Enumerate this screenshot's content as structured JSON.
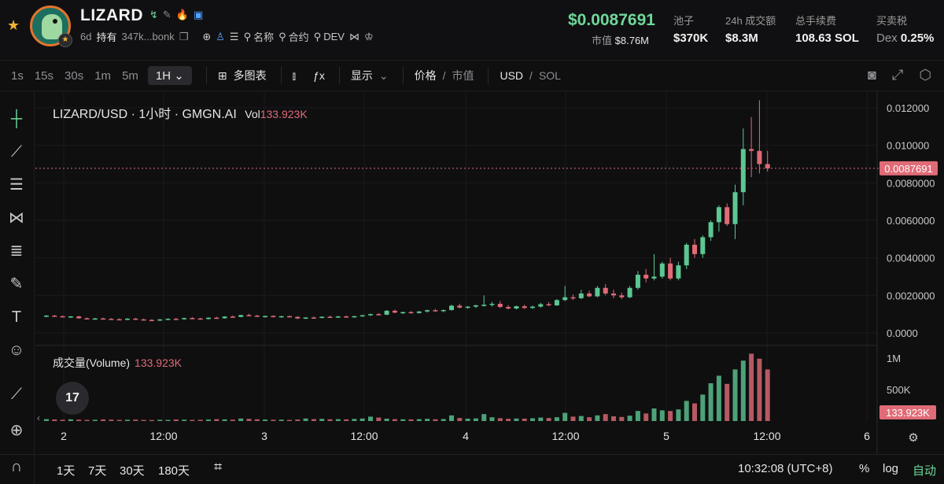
{
  "header": {
    "token_name": "LIZARD",
    "age": "6d",
    "holders_label": "持有",
    "address": "347k...bonk",
    "links": [
      {
        "icon": "globe-icon"
      },
      {
        "icon": "user-icon"
      },
      {
        "icon": "list-icon"
      }
    ],
    "search_name_label": "名称",
    "search_contract_label": "合约",
    "search_dev_label": "DEV",
    "price": "$0.0087691",
    "mcap_label": "市值",
    "mcap_value": "$8.76M",
    "stats": [
      {
        "label": "池子",
        "value": "$370K"
      },
      {
        "label": "24h 成交额",
        "value": "$8.3M"
      },
      {
        "label": "总手续费",
        "value": "108.63 SOL"
      },
      {
        "label": "买卖税",
        "prefix": "Dex",
        "value": "0.25%"
      }
    ]
  },
  "toolbar": {
    "timeframes": [
      "1s",
      "15s",
      "30s",
      "1m",
      "5m"
    ],
    "selected_timeframe": "1H",
    "multi_chart_label": "多图表",
    "display_label": "显示",
    "price_label": "价格",
    "mcap_toggle_label": "市值",
    "usd_label": "USD",
    "sol_label": "SOL"
  },
  "chart": {
    "legend_title": "LIZARD/USD · 1小时 · GMGN.AI",
    "vol_prefix": "Vol",
    "vol_value": "133.923K",
    "volume_title": "成交量(Volume)",
    "volume_value": "133.923K",
    "tv_logo": "17",
    "last_price_label": "0.0087691",
    "volume_last_label": "133.923K",
    "price_ticks": [
      "0.0000",
      "0.0020000",
      "0.0040000",
      "0.0060000",
      "0.0080000",
      "0.010000",
      "0.012000"
    ],
    "volume_ticks": [
      "500K",
      "1M"
    ],
    "time_ticks": [
      "2",
      "12:00",
      "3",
      "12:00",
      "4",
      "12:00",
      "5",
      "12:00",
      "6"
    ],
    "up_color": "#5cc792",
    "down_color": "#e06b77"
  },
  "chart_data": {
    "type": "candlestick",
    "pair": "LIZARD/USD",
    "interval": "1小时",
    "ylim": [
      0,
      0.0125
    ],
    "candles": [
      [
        0.0009,
        0.00095,
        0.00085,
        0.00092
      ],
      [
        0.00092,
        0.00096,
        0.00088,
        0.00089
      ],
      [
        0.00089,
        0.00092,
        0.00083,
        0.00085
      ],
      [
        0.00085,
        0.0009,
        0.0008,
        0.00088
      ],
      [
        0.00088,
        0.00091,
        0.00075,
        0.00078
      ],
      [
        0.00078,
        0.00082,
        0.00072,
        0.00074
      ],
      [
        0.00074,
        0.0008,
        0.0007,
        0.00077
      ],
      [
        0.00077,
        0.00081,
        0.00072,
        0.00075
      ],
      [
        0.00075,
        0.00079,
        0.0007,
        0.00073
      ],
      [
        0.00073,
        0.00077,
        0.00068,
        0.00071
      ],
      [
        0.00071,
        0.00078,
        0.00067,
        0.00076
      ],
      [
        0.00076,
        0.0008,
        0.0007,
        0.00072
      ],
      [
        0.00072,
        0.00076,
        0.00066,
        0.00069
      ],
      [
        0.00069,
        0.00073,
        0.00064,
        0.00067
      ],
      [
        0.00067,
        0.00074,
        0.00063,
        0.00072
      ],
      [
        0.00072,
        0.00078,
        0.00069,
        0.00075
      ],
      [
        0.00075,
        0.0008,
        0.0007,
        0.00073
      ],
      [
        0.00073,
        0.00081,
        0.0007,
        0.00079
      ],
      [
        0.00079,
        0.00084,
        0.00075,
        0.00077
      ],
      [
        0.00077,
        0.0008,
        0.00071,
        0.00074
      ],
      [
        0.00074,
        0.00083,
        0.00072,
        0.00081
      ],
      [
        0.00081,
        0.00086,
        0.00076,
        0.00078
      ],
      [
        0.00078,
        0.00089,
        0.00076,
        0.00087
      ],
      [
        0.00087,
        0.00093,
        0.00082,
        0.00085
      ],
      [
        0.00085,
        0.00097,
        0.00083,
        0.00095
      ],
      [
        0.00095,
        0.00102,
        0.00089,
        0.00092
      ],
      [
        0.00092,
        0.00096,
        0.00085,
        0.00088
      ],
      [
        0.00088,
        0.00092,
        0.00082,
        0.0009
      ],
      [
        0.0009,
        0.00094,
        0.00084,
        0.00086
      ],
      [
        0.00086,
        0.00091,
        0.00081,
        0.00089
      ],
      [
        0.00089,
        0.00093,
        0.00083,
        0.00085
      ],
      [
        0.00085,
        0.00089,
        0.00074,
        0.00077
      ],
      [
        0.00077,
        0.00084,
        0.00074,
        0.00082
      ],
      [
        0.00082,
        0.00087,
        0.00078,
        0.0008
      ],
      [
        0.0008,
        0.00088,
        0.00077,
        0.00086
      ],
      [
        0.00086,
        0.00092,
        0.00082,
        0.00084
      ],
      [
        0.00084,
        0.0009,
        0.0008,
        0.00088
      ],
      [
        0.00088,
        0.00093,
        0.00081,
        0.00083
      ],
      [
        0.00083,
        0.00091,
        0.00081,
        0.00089
      ],
      [
        0.00089,
        0.00096,
        0.00086,
        0.00094
      ],
      [
        0.00094,
        0.00103,
        0.0009,
        0.001
      ],
      [
        0.001,
        0.00106,
        0.00094,
        0.00097
      ],
      [
        0.00097,
        0.00121,
        0.00095,
        0.00118
      ],
      [
        0.00118,
        0.00124,
        0.00105,
        0.00108
      ],
      [
        0.00108,
        0.00113,
        0.001,
        0.00111
      ],
      [
        0.00111,
        0.00116,
        0.00103,
        0.00106
      ],
      [
        0.00106,
        0.00117,
        0.00103,
        0.00114
      ],
      [
        0.00114,
        0.00124,
        0.00108,
        0.00121
      ],
      [
        0.00121,
        0.00128,
        0.00113,
        0.00117
      ],
      [
        0.00117,
        0.00124,
        0.0011,
        0.00122
      ],
      [
        0.00122,
        0.0015,
        0.00118,
        0.00145
      ],
      [
        0.00145,
        0.00155,
        0.0013,
        0.00135
      ],
      [
        0.00135,
        0.00143,
        0.00128,
        0.0014
      ],
      [
        0.0014,
        0.0015,
        0.00133,
        0.00147
      ],
      [
        0.00147,
        0.002,
        0.0014,
        0.0015
      ],
      [
        0.0015,
        0.00165,
        0.0014,
        0.00155
      ],
      [
        0.00155,
        0.0017,
        0.00133,
        0.00138
      ],
      [
        0.00138,
        0.00148,
        0.00125,
        0.0013
      ],
      [
        0.0013,
        0.00145,
        0.00125,
        0.00142
      ],
      [
        0.00142,
        0.0015,
        0.00128,
        0.00133
      ],
      [
        0.00133,
        0.00145,
        0.00128,
        0.0014
      ],
      [
        0.0014,
        0.0016,
        0.00135,
        0.00153
      ],
      [
        0.00153,
        0.00165,
        0.00142,
        0.00147
      ],
      [
        0.00147,
        0.0018,
        0.00143,
        0.00175
      ],
      [
        0.00175,
        0.0025,
        0.0017,
        0.0019
      ],
      [
        0.0019,
        0.00205,
        0.00175,
        0.00185
      ],
      [
        0.00185,
        0.0023,
        0.0018,
        0.0021
      ],
      [
        0.0021,
        0.00225,
        0.0019,
        0.00195
      ],
      [
        0.00195,
        0.0025,
        0.0019,
        0.0024
      ],
      [
        0.0024,
        0.0026,
        0.002,
        0.0021
      ],
      [
        0.0021,
        0.0023,
        0.00185,
        0.002
      ],
      [
        0.002,
        0.00215,
        0.0018,
        0.0019
      ],
      [
        0.0019,
        0.0025,
        0.00185,
        0.0024
      ],
      [
        0.0024,
        0.0033,
        0.0023,
        0.0031
      ],
      [
        0.0031,
        0.0034,
        0.0027,
        0.0029
      ],
      [
        0.0029,
        0.0042,
        0.0028,
        0.003
      ],
      [
        0.003,
        0.0038,
        0.0029,
        0.0037
      ],
      [
        0.0037,
        0.004,
        0.0028,
        0.0029
      ],
      [
        0.0029,
        0.0038,
        0.0028,
        0.0036
      ],
      [
        0.0036,
        0.0048,
        0.0034,
        0.0047
      ],
      [
        0.0047,
        0.005,
        0.004,
        0.0042
      ],
      [
        0.0042,
        0.0052,
        0.004,
        0.0051
      ],
      [
        0.0051,
        0.006,
        0.0049,
        0.0059
      ],
      [
        0.0059,
        0.0068,
        0.0054,
        0.0067
      ],
      [
        0.0067,
        0.0069,
        0.0057,
        0.0058
      ],
      [
        0.0058,
        0.0079,
        0.005,
        0.0075
      ],
      [
        0.0075,
        0.0109,
        0.0068,
        0.0098
      ],
      [
        0.0098,
        0.0115,
        0.0083,
        0.0097
      ],
      [
        0.0097,
        0.0124,
        0.0085,
        0.009
      ],
      [
        0.009,
        0.0097,
        0.0086,
        0.00877
      ]
    ],
    "volume": [
      30,
      25,
      20,
      28,
      22,
      18,
      20,
      25,
      22,
      18,
      20,
      22,
      18,
      16,
      20,
      18,
      25,
      22,
      18,
      20,
      24,
      30,
      26,
      22,
      40,
      35,
      28,
      24,
      20,
      22,
      18,
      24,
      40,
      30,
      35,
      28,
      30,
      26,
      34,
      40,
      70,
      55,
      38,
      30,
      28,
      26,
      30,
      35,
      28,
      32,
      90,
      48,
      38,
      42,
      110,
      60,
      45,
      35,
      40,
      38,
      44,
      55,
      48,
      60,
      130,
      70,
      80,
      60,
      90,
      110,
      75,
      65,
      85,
      160,
      120,
      200,
      170,
      160,
      185,
      320,
      280,
      420,
      600,
      720,
      590,
      820,
      960,
      1070,
      990,
      820,
      133.923
    ]
  }
}
